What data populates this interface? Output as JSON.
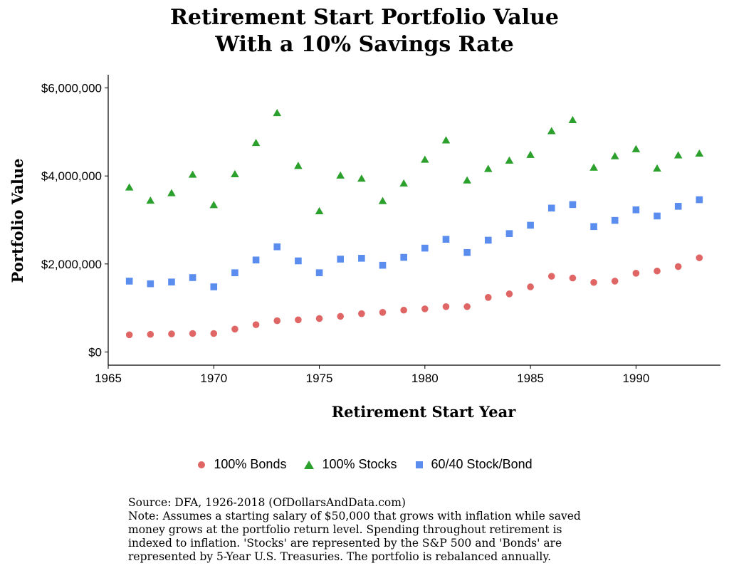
{
  "chart_data": {
    "type": "scatter",
    "title_lines": [
      "Retirement Start Portfolio Value",
      "With a 10% Savings Rate"
    ],
    "xlabel": "Retirement Start Year",
    "ylabel": "Portfolio Value",
    "xlim": [
      1965,
      1994
    ],
    "ylim": [
      -300000,
      6300000
    ],
    "x_ticks": [
      1965,
      1970,
      1975,
      1980,
      1985,
      1990
    ],
    "x_tick_labels": [
      "1965",
      "1970",
      "1975",
      "1980",
      "1985",
      "1990"
    ],
    "y_ticks": [
      0,
      2000000,
      4000000,
      6000000
    ],
    "y_tick_labels": [
      "$0",
      "$2,000,000",
      "$4,000,000",
      "$6,000,000"
    ],
    "grid": false,
    "legend_position": "bottom",
    "x": [
      1966,
      1967,
      1968,
      1969,
      1970,
      1971,
      1972,
      1973,
      1974,
      1975,
      1976,
      1977,
      1978,
      1979,
      1980,
      1981,
      1982,
      1983,
      1984,
      1985,
      1986,
      1987,
      1988,
      1989,
      1990,
      1991,
      1992,
      1993
    ],
    "series": [
      {
        "name": "100% Bonds",
        "marker": "circle",
        "color": "#E06666",
        "values": [
          390000,
          400000,
          410000,
          420000,
          420000,
          520000,
          620000,
          710000,
          730000,
          760000,
          810000,
          870000,
          900000,
          950000,
          980000,
          1030000,
          1030000,
          1240000,
          1320000,
          1480000,
          1720000,
          1680000,
          1580000,
          1610000,
          1790000,
          1840000,
          1940000,
          2140000
        ]
      },
      {
        "name": "100% Stocks",
        "marker": "triangle",
        "color": "#2CA02C",
        "values": [
          3740000,
          3440000,
          3610000,
          4030000,
          3340000,
          4040000,
          4750000,
          5430000,
          4230000,
          3200000,
          4010000,
          3940000,
          3430000,
          3830000,
          4370000,
          4810000,
          3900000,
          4160000,
          4350000,
          4480000,
          5020000,
          5270000,
          4190000,
          4450000,
          4610000,
          4170000,
          4470000,
          4510000
        ]
      },
      {
        "name": "60/40 Stock/Bond",
        "marker": "square",
        "color": "#5B8DEF",
        "values": [
          1610000,
          1550000,
          1590000,
          1690000,
          1480000,
          1800000,
          2090000,
          2390000,
          2070000,
          1800000,
          2110000,
          2130000,
          1970000,
          2150000,
          2360000,
          2560000,
          2260000,
          2540000,
          2690000,
          2880000,
          3270000,
          3350000,
          2850000,
          2990000,
          3230000,
          3090000,
          3310000,
          3460000
        ]
      }
    ]
  },
  "legend": {
    "items": [
      {
        "label": "100% Bonds",
        "marker": "circle",
        "color": "#E06666"
      },
      {
        "label": "100% Stocks",
        "marker": "triangle",
        "color": "#2CA02C"
      },
      {
        "label": "60/40 Stock/Bond",
        "marker": "square",
        "color": "#5B8DEF"
      }
    ]
  },
  "notes": {
    "lines": [
      "Source:  DFA, 1926-2018 (OfDollarsAndData.com)",
      "Note: Assumes a starting salary of $50,000 that grows with inflation while saved",
      "money grows at the portfolio return level. Spending throughout retirement is",
      "indexed to inflation. 'Stocks' are represented by the S&P 500 and 'Bonds' are",
      "represented by 5-Year U.S. Treasuries. The portfolio is rebalanced annually."
    ]
  }
}
